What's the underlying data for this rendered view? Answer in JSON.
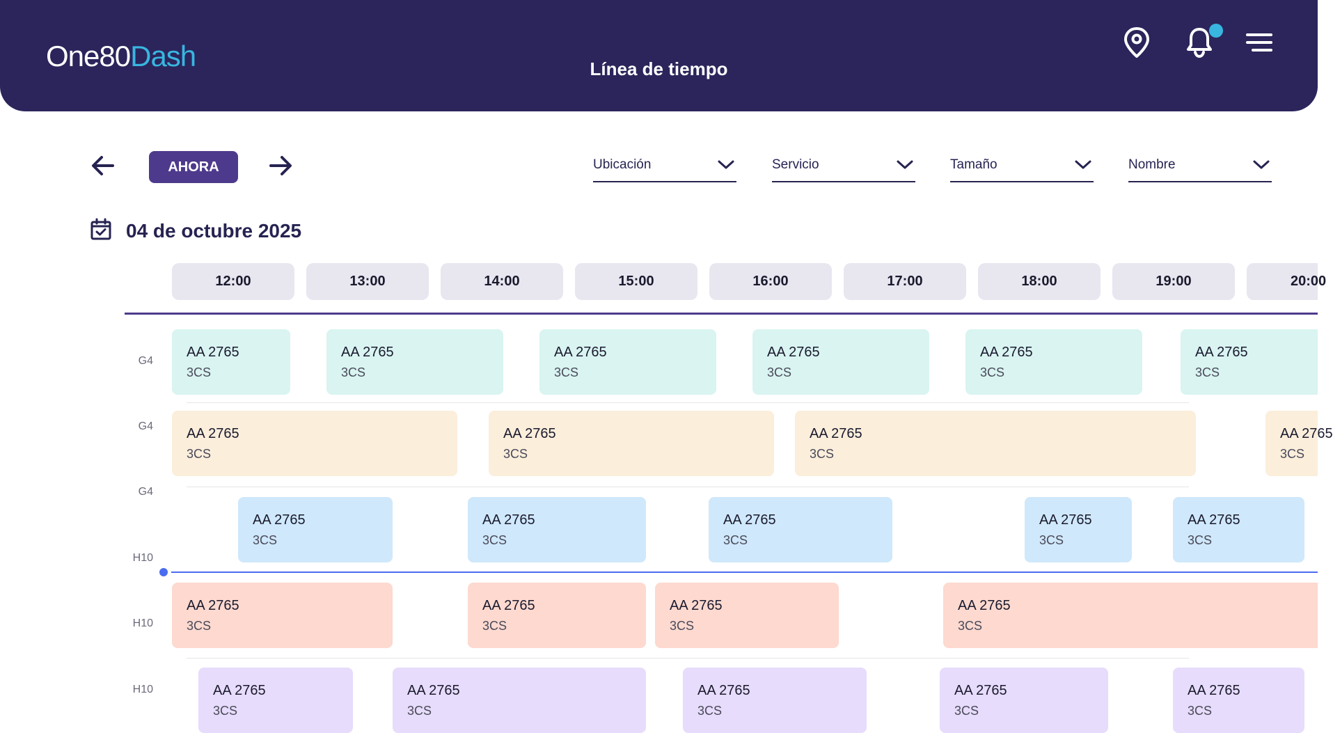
{
  "header": {
    "logo_part1": "One80",
    "logo_part2": "Dash",
    "title": "Línea de tiempo",
    "icons": [
      "location-pin-icon",
      "bell-icon",
      "menu-icon"
    ],
    "colors": {
      "background": "#2b255b",
      "accent": "#38b6e0"
    }
  },
  "toolbar": {
    "now_label": "AHORA",
    "filters": [
      {
        "label": "Ubicación"
      },
      {
        "label": "Servicio"
      },
      {
        "label": "Tamaño"
      },
      {
        "label": "Nombre"
      }
    ]
  },
  "date": {
    "label": "04 de octubre 2025"
  },
  "timeline": {
    "hours": [
      "12:00",
      "13:00",
      "14:00",
      "15:00",
      "16:00",
      "17:00",
      "18:00",
      "19:00",
      "20:00"
    ],
    "row_labels": [
      "G4",
      "G4",
      "G4",
      "H10",
      "H10",
      "H10"
    ],
    "lanes": [
      {
        "color": "#d9f4f1",
        "events": [
          {
            "name": "AA 2765",
            "code": "3CS"
          },
          {
            "name": "AA 2765",
            "code": "3CS"
          },
          {
            "name": "AA 2765",
            "code": "3CS"
          },
          {
            "name": "AA 2765",
            "code": "3CS"
          },
          {
            "name": "AA 2765",
            "code": "3CS"
          },
          {
            "name": "AA 2765",
            "code": "3CS"
          }
        ]
      },
      {
        "color": "#fbeedb",
        "events": [
          {
            "name": "AA 2765",
            "code": "3CS"
          },
          {
            "name": "AA 2765",
            "code": "3CS"
          },
          {
            "name": "AA 2765",
            "code": "3CS"
          },
          {
            "name": "AA 2765",
            "code": "3CS"
          }
        ]
      },
      {
        "color": "#cfe8fb",
        "events": [
          {
            "name": "AA 2765",
            "code": "3CS"
          },
          {
            "name": "AA 2765",
            "code": "3CS"
          },
          {
            "name": "AA 2765",
            "code": "3CS"
          },
          {
            "name": "AA 2765",
            "code": "3CS"
          },
          {
            "name": "AA 2765",
            "code": "3CS"
          }
        ]
      },
      {
        "color": "#fdd9cf",
        "events": [
          {
            "name": "AA 2765",
            "code": "3CS"
          },
          {
            "name": "AA 2765",
            "code": "3CS"
          },
          {
            "name": "AA 2765",
            "code": "3CS"
          },
          {
            "name": "AA 2765",
            "code": "3CS"
          }
        ]
      },
      {
        "color": "#e7dcfb",
        "events": [
          {
            "name": "AA 2765",
            "code": "3CS"
          },
          {
            "name": "AA 2765",
            "code": "3CS"
          },
          {
            "name": "AA 2765",
            "code": "3CS"
          },
          {
            "name": "AA 2765",
            "code": "3CS"
          },
          {
            "name": "AA 2765",
            "code": "3CS"
          }
        ]
      }
    ]
  }
}
